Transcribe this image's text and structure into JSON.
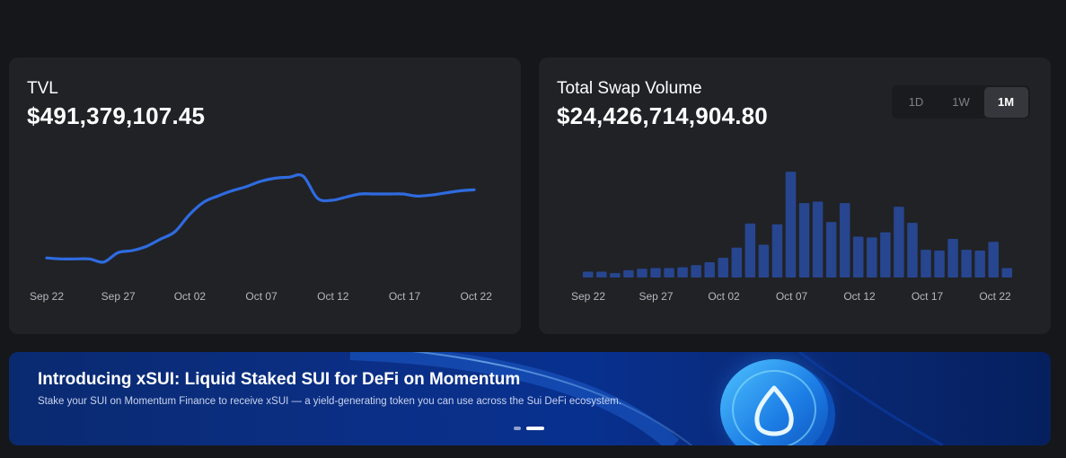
{
  "tvl": {
    "label": "TVL",
    "value": "$491,379,107.45"
  },
  "swap_volume": {
    "label": "Total Swap Volume",
    "value": "$24,426,714,904.80",
    "ranges": [
      "1D",
      "1W",
      "1M"
    ],
    "selected_range": "1M"
  },
  "banner": {
    "title": "Introducing xSUI: Liquid Staked SUI for DeFi on Momentum",
    "subtitle": "Stake your SUI on Momentum Finance to receive xSUI — a yield-generating token you can use across the Sui DeFi ecosystem.",
    "active_slide": 2,
    "slide_count": 2
  },
  "colors": {
    "accent_line": "#2f6be0",
    "bar": "#27468f"
  },
  "chart_data": [
    {
      "type": "line",
      "x_ticks": [
        "Sep 22",
        "Sep 27",
        "Oct 02",
        "Oct 07",
        "Oct 12",
        "Oct 17",
        "Oct 22"
      ],
      "x": [
        0,
        1,
        2,
        3,
        4,
        5,
        6,
        7,
        8,
        9,
        10,
        11,
        12,
        13,
        14,
        15,
        16,
        17,
        18,
        19,
        20,
        21,
        22,
        23,
        24,
        25,
        26,
        27,
        28,
        29,
        30
      ],
      "series": [
        {
          "values": [
            383,
            382,
            382,
            382,
            379,
            388,
            390,
            394,
            401,
            408,
            424,
            436,
            442,
            447,
            451,
            456,
            459,
            460,
            461,
            440,
            438,
            441,
            444,
            444,
            444,
            444,
            442,
            443,
            445,
            447,
            448
          ]
        }
      ],
      "ylim": [
        360,
        480
      ],
      "grid": false
    },
    {
      "type": "bar",
      "x_ticks": [
        "Sep 22",
        "Sep 27",
        "Oct 02",
        "Oct 07",
        "Oct 12",
        "Oct 17",
        "Oct 22"
      ],
      "values": [
        8,
        8,
        6,
        10,
        12,
        13,
        13,
        14,
        17,
        21,
        27,
        41,
        74,
        45,
        73,
        145,
        102,
        104,
        76,
        102,
        56,
        55,
        62,
        97,
        75,
        38,
        37,
        53,
        38,
        37,
        49,
        13
      ],
      "ylim": [
        0,
        160
      ],
      "grid": false
    }
  ]
}
